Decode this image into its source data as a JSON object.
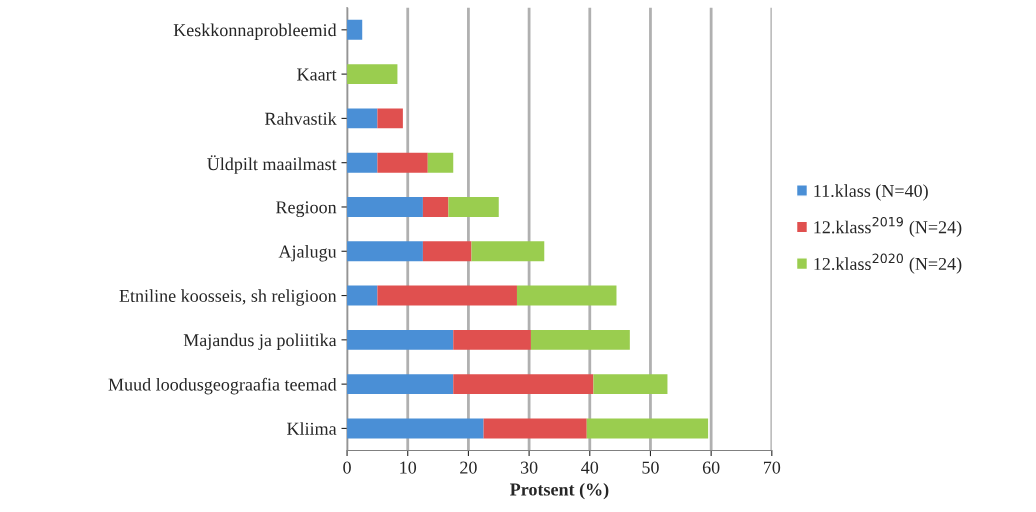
{
  "chart_data": {
    "type": "bar",
    "orientation": "horizontal",
    "stacked": true,
    "xlabel": "Protsent (%)",
    "categories": [
      "Keskkonnaprobleemid",
      "Kaart",
      "Rahvastik",
      "Üldpilt maailmast",
      "Regioon",
      "Ajalugu",
      "Etniline koosseis, sh religioon",
      "Majandus ja poliitika",
      "Muud loodusgeograafia teemad",
      "Kliima"
    ],
    "series": [
      {
        "name": "11.klass (N=40)",
        "color": "#4a8fd6",
        "values": [
          2.5,
          null,
          5,
          5,
          12.5,
          12.5,
          5,
          17.5,
          17.5,
          22.5
        ]
      },
      {
        "name": "12.klass$^{2019}$ (N=24)",
        "color": "#e0504f",
        "values": [
          null,
          null,
          4.2,
          8.3,
          4.2,
          8,
          23,
          12.8,
          23.1,
          17
        ]
      },
      {
        "name": "12.klass$^{2020}$ (N=24)",
        "color": "#9acd4f",
        "values": [
          null,
          8.3,
          null,
          4.2,
          8.3,
          12,
          16.4,
          16.3,
          12.2,
          20
        ]
      }
    ],
    "xlim": [
      0,
      70
    ],
    "xticks": [
      0,
      10,
      20,
      30,
      40,
      50,
      60,
      70
    ],
    "grid": "x",
    "legend": "right"
  }
}
